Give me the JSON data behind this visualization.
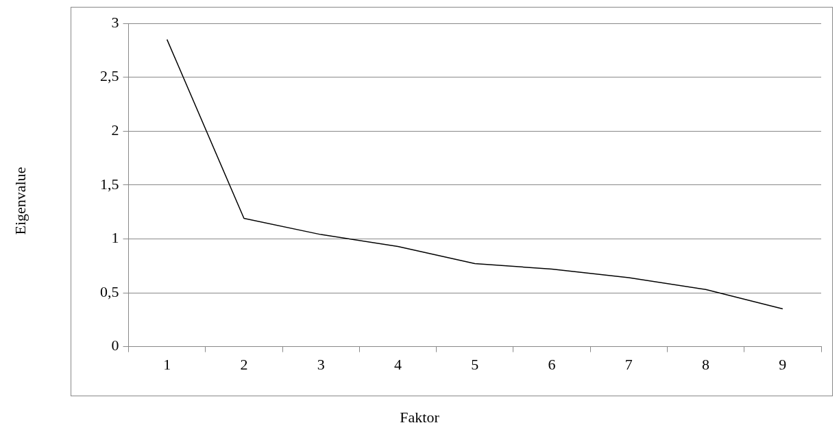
{
  "chart_data": {
    "type": "line",
    "xlabel": "Faktor",
    "ylabel": "Eigenvalue",
    "categories": [
      "1",
      "2",
      "3",
      "4",
      "5",
      "6",
      "7",
      "8",
      "9"
    ],
    "series": [
      {
        "color": "#000000",
        "values": [
          2.85,
          1.19,
          1.04,
          0.93,
          0.77,
          0.72,
          0.64,
          0.53,
          0.35
        ]
      }
    ],
    "ylim": [
      0,
      3
    ],
    "yticks": [
      0,
      {
        "value": 0.5,
        "label": "0,5"
      },
      1,
      {
        "value": 1.5,
        "label": "1,5"
      },
      2,
      {
        "value": 2.5,
        "label": "2,5"
      },
      3
    ],
    "grid": "y",
    "legend": false,
    "marker": "none",
    "line_style": "solid"
  }
}
